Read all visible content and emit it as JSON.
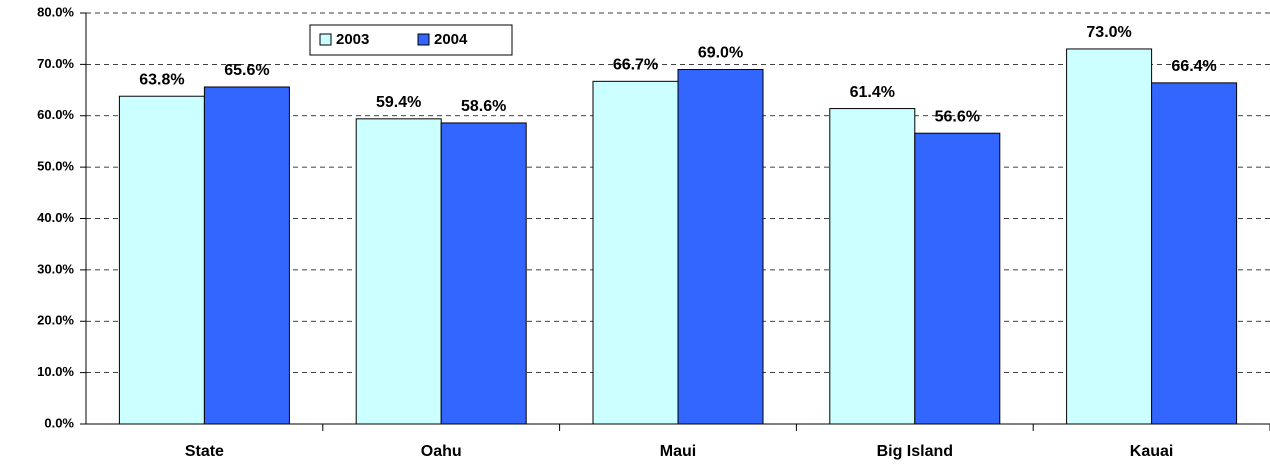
{
  "chart_data": {
    "type": "bar",
    "categories": [
      "State",
      "Oahu",
      "Maui",
      "Big Island",
      "Kauai"
    ],
    "series": [
      {
        "name": "2003",
        "color": "#ccffff",
        "values": [
          63.8,
          59.4,
          66.7,
          61.4,
          73.0
        ],
        "value_labels": [
          "63.8%",
          "59.4%",
          "66.7%",
          "61.4%",
          "73.0%"
        ]
      },
      {
        "name": "2004",
        "color": "#3366ff",
        "values": [
          65.6,
          58.6,
          69.0,
          56.6,
          66.4
        ],
        "value_labels": [
          "65.6%",
          "58.6%",
          "69.0%",
          "56.6%",
          "66.4%"
        ]
      }
    ],
    "ylim": [
      0,
      80
    ],
    "yticks": [
      {
        "value": 0,
        "label": "0.0%"
      },
      {
        "value": 10,
        "label": "10.0%"
      },
      {
        "value": 20,
        "label": "20.0%"
      },
      {
        "value": 30,
        "label": "30.0%"
      },
      {
        "value": 40,
        "label": "40.0%"
      },
      {
        "value": 50,
        "label": "50.0%"
      },
      {
        "value": 60,
        "label": "60.0%"
      },
      {
        "value": 70,
        "label": "70.0%"
      },
      {
        "value": 80,
        "label": "80.0%"
      }
    ],
    "grid": true,
    "legend": "top-left"
  }
}
